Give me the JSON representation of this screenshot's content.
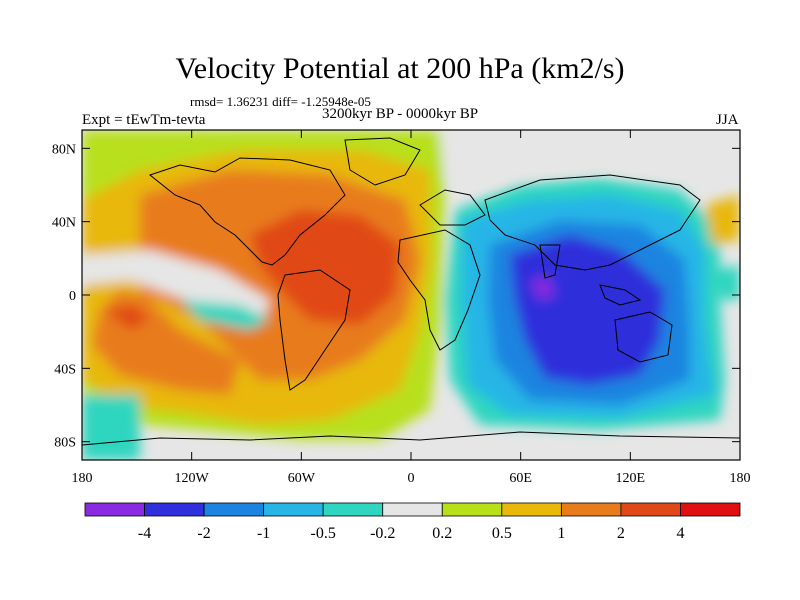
{
  "header": {
    "title": "Velocity Potential at 200 hPa (km2/s)",
    "stats": "rmsd= 1.36231 diff= -1.25948e-05",
    "experiment": "Expt = tEwTm-tevta",
    "period": "3200kyr BP - 0000kyr BP",
    "season": "JJA"
  },
  "axes": {
    "y_ticks": [
      {
        "label": "80N",
        "value": 80
      },
      {
        "label": "40N",
        "value": 40
      },
      {
        "label": "0",
        "value": 0
      },
      {
        "label": "40S",
        "value": -40
      },
      {
        "label": "80S",
        "value": -80
      }
    ],
    "x_ticks": [
      {
        "label": "180",
        "value": -180
      },
      {
        "label": "120W",
        "value": -120
      },
      {
        "label": "60W",
        "value": -60
      },
      {
        "label": "0",
        "value": 0
      },
      {
        "label": "60E",
        "value": 60
      },
      {
        "label": "120E",
        "value": 120
      },
      {
        "label": "180",
        "value": 180
      }
    ],
    "lon_range": [
      -180,
      180
    ],
    "lat_range": [
      -90,
      90
    ]
  },
  "colorbar": {
    "colors": [
      "#8a2be2",
      "#2f2fdb",
      "#1a84e0",
      "#26b6e6",
      "#2ed6c0",
      "#e6e6e6",
      "#b8e01a",
      "#e8b80a",
      "#e87c1a",
      "#e04818",
      "#e01010"
    ],
    "labels": [
      "-4",
      "-2",
      "-1",
      "-0.5",
      "-0.2",
      "0.2",
      "0.5",
      "1",
      "2",
      "4"
    ]
  }
}
